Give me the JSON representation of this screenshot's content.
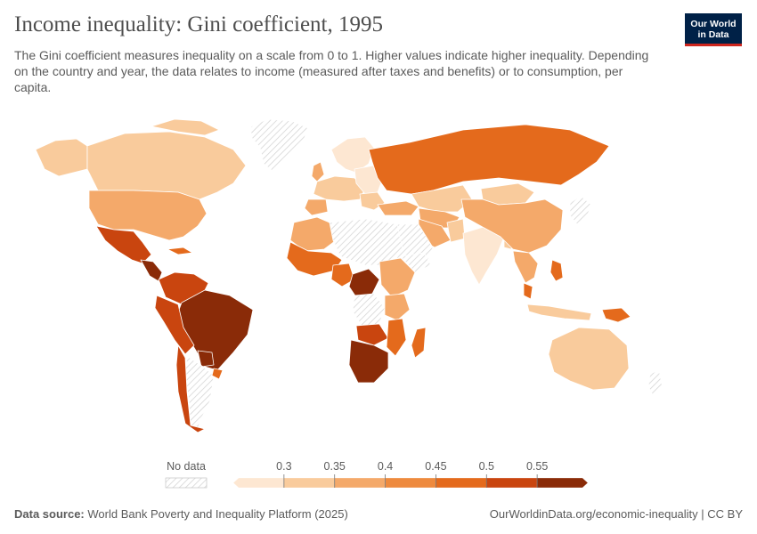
{
  "header": {
    "title": "Income inequality: Gini coefficient, 1995",
    "subtitle": "The Gini coefficient measures inequality on a scale from 0 to 1. Higher values indicate higher inequality. Depending on the country and year, the data relates to income (measured after taxes and benefits) or to consumption, per capita."
  },
  "logo": {
    "line1": "Our World",
    "line2": "in Data"
  },
  "legend": {
    "no_data_label": "No data",
    "ticks": [
      "0.3",
      "0.35",
      "0.4",
      "0.45",
      "0.5",
      "0.55"
    ],
    "bins": [
      {
        "range": "< 0.3",
        "color": "#fde7d2"
      },
      {
        "range": "0.3–0.35",
        "color": "#f9cb9c"
      },
      {
        "range": "0.35–0.4",
        "color": "#f4a96a"
      },
      {
        "range": "0.4–0.45",
        "color": "#ee8a3e"
      },
      {
        "range": "0.45–0.5",
        "color": "#e46a1c"
      },
      {
        "range": "0.5–0.55",
        "color": "#c9450f"
      },
      {
        "range": "> 0.55",
        "color": "#8a2b08"
      }
    ]
  },
  "colors": {
    "no_data_stripe": "#d8d8d8",
    "border": "#ffffff"
  },
  "footer": {
    "source_label": "Data source:",
    "source_text": "World Bank Poverty and Inequality Platform (2025)",
    "url_text": "OurWorldinData.org/economic-inequality | CC BY"
  }
}
